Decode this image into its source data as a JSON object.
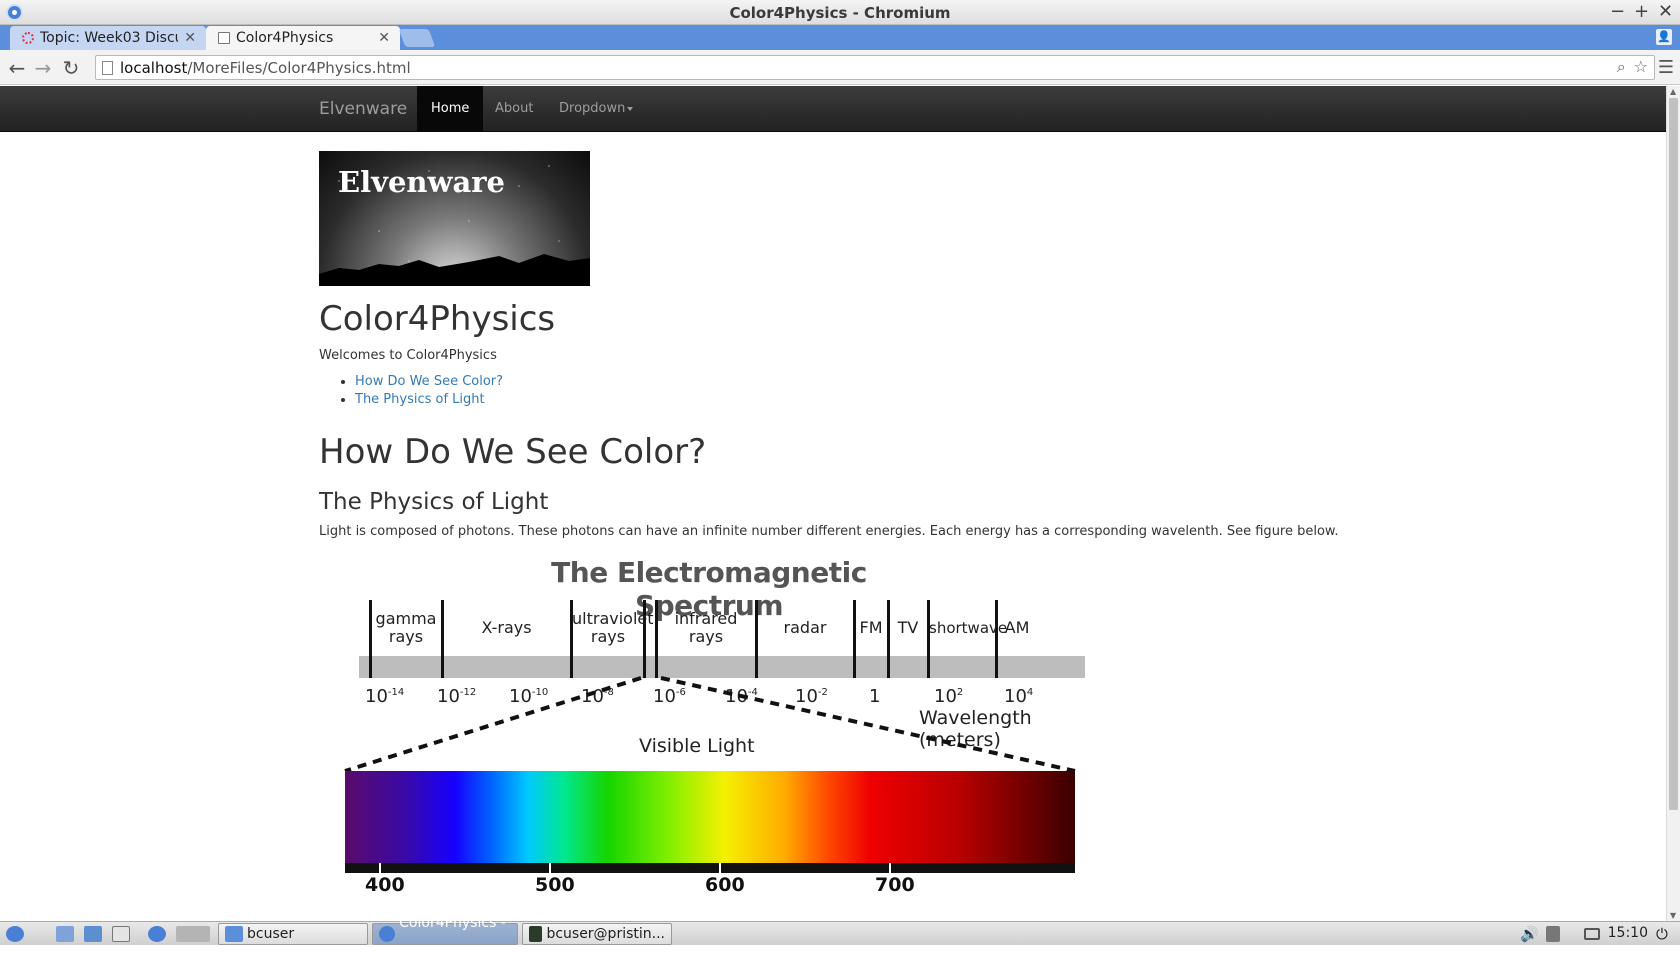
{
  "window": {
    "title": "Color4Physics - Chromium"
  },
  "tabs": [
    {
      "label": "Topic: Week03 Discu",
      "active": false
    },
    {
      "label": "Color4Physics",
      "active": true
    }
  ],
  "address_bar": {
    "host": "localhost",
    "path": "/MoreFiles/Color4Physics.html"
  },
  "navbar": {
    "brand": "Elvenware",
    "items": [
      {
        "label": "Home",
        "active": true
      },
      {
        "label": "About",
        "active": false
      },
      {
        "label": "Dropdown",
        "active": false
      }
    ]
  },
  "page": {
    "logo_text": "Elvenware",
    "title": "Color4Physics",
    "welcome": "Welcomes to Color4Physics",
    "toc": [
      "How Do We See Color?",
      "The Physics of Light"
    ],
    "section1_heading": "How Do We See Color?",
    "section2_heading": "The Physics of Light",
    "paragraph": "Light is composed of photons. These photons can have an infinite number different energies. Each energy has a corresponding wavelenth. See figure below."
  },
  "figure": {
    "title": "The Electromagnetic Spectrum",
    "bands": [
      {
        "label1": "gamma",
        "label2": "rays"
      },
      {
        "label1": "X-rays",
        "label2": ""
      },
      {
        "label1": "ultraviolet",
        "label2": "rays"
      },
      {
        "label1": "infrared",
        "label2": "rays"
      },
      {
        "label1": "radar",
        "label2": ""
      },
      {
        "label1": "FM",
        "label2": ""
      },
      {
        "label1": "TV",
        "label2": ""
      },
      {
        "label1": "shortwave",
        "label2": ""
      },
      {
        "label1": "AM",
        "label2": ""
      }
    ],
    "wavelength_ticks": [
      {
        "base": "10",
        "exp": "-14"
      },
      {
        "base": "10",
        "exp": "-12"
      },
      {
        "base": "10",
        "exp": "-10"
      },
      {
        "base": "10",
        "exp": "-8"
      },
      {
        "base": "10",
        "exp": "-6"
      },
      {
        "base": "10",
        "exp": "-4"
      },
      {
        "base": "10",
        "exp": "-2"
      },
      {
        "base": "1",
        "exp": ""
      },
      {
        "base": "10",
        "exp": "2"
      },
      {
        "base": "10",
        "exp": "4"
      }
    ],
    "wavelength_label": "Wavelength (meters)",
    "visible_label": "Visible Light",
    "visible_ticks": [
      "400",
      "500",
      "600",
      "700"
    ]
  },
  "taskbar": {
    "items": [
      "bcuser",
      "Color4Physics - ...",
      "bcuser@pristin..."
    ],
    "clock": "15:10"
  },
  "colors": {
    "tab_strip": "#5b8fdc",
    "navbar": "#222222",
    "link": "#337ab7"
  }
}
